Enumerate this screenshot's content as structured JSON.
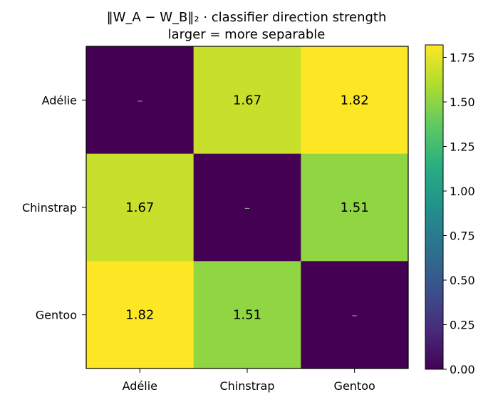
{
  "chart_data": {
    "type": "heatmap",
    "title": "‖W_A − W_B‖₂  ·  classifier direction strength",
    "subtitle": "larger = more separable",
    "x_categories": [
      "Adélie",
      "Chinstrap",
      "Gentoo"
    ],
    "y_categories": [
      "Adélie",
      "Chinstrap",
      "Gentoo"
    ],
    "values": [
      [
        0.0,
        1.67,
        1.82
      ],
      [
        1.67,
        0.0,
        1.51
      ],
      [
        1.82,
        1.51,
        0.0
      ]
    ],
    "cell_labels": [
      [
        "–",
        "1.67",
        "1.82"
      ],
      [
        "1.67",
        "–",
        "1.51"
      ],
      [
        "1.82",
        "1.51",
        "–"
      ]
    ],
    "colormap": "viridis",
    "vmin": 0.0,
    "vmax": 1.82,
    "colorbar_ticks": [
      "0.00",
      "0.25",
      "0.50",
      "0.75",
      "1.00",
      "1.25",
      "1.50",
      "1.75"
    ],
    "colorbar_tick_values": [
      0.0,
      0.25,
      0.5,
      0.75,
      1.0,
      1.25,
      1.5,
      1.75
    ]
  }
}
